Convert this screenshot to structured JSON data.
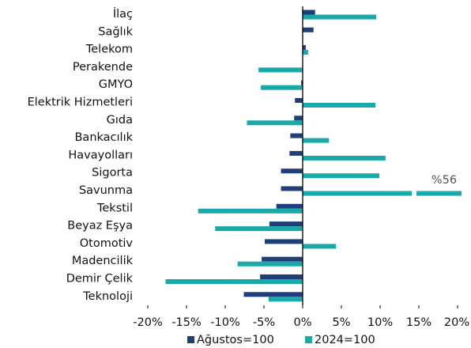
{
  "chart_data": {
    "type": "bar",
    "orientation": "horizontal",
    "categories": [
      "İlaç",
      "Sağlık",
      "Telekom",
      "Perakende",
      "GMYO",
      "Elektrik Hizmetleri",
      "Gıda",
      "Bankacılık",
      "Havayolları",
      "Sigorta",
      "Savunma",
      "Tekstil",
      "Beyaz Eşya",
      "Otomotiv",
      "Madencilik",
      "Demir Çelik",
      "Teknoloji"
    ],
    "series": [
      {
        "name": "Ağustos=100",
        "color": "#1f3f7a",
        "values": [
          1.6,
          1.4,
          0.4,
          0,
          -0.2,
          -1.0,
          -1.1,
          -1.6,
          -1.7,
          -2.8,
          -2.8,
          -3.4,
          -4.3,
          -4.9,
          -5.3,
          -5.5,
          -7.6
        ]
      },
      {
        "name": "2024=100",
        "color": "#1aa9a9",
        "values": [
          9.5,
          0,
          0.7,
          -5.7,
          -5.4,
          9.4,
          -7.2,
          3.4,
          10.7,
          9.9,
          56,
          -13.5,
          -11.3,
          4.3,
          -8.4,
          -17.7,
          -4.4
        ],
        "value_labels": [
          null,
          null,
          null,
          null,
          null,
          null,
          null,
          null,
          null,
          null,
          "%56",
          null,
          null,
          null,
          null,
          null,
          null
        ]
      }
    ],
    "xlim": [
      -20,
      20
    ],
    "xticks": [
      {
        "value": -20,
        "label": "-20%"
      },
      {
        "value": -15,
        "label": "-15%"
      },
      {
        "value": -10,
        "label": "-10%"
      },
      {
        "value": -5,
        "label": "-5%"
      },
      {
        "value": 0,
        "label": "0%"
      },
      {
        "value": 5,
        "label": "5%"
      },
      {
        "value": 10,
        "label": "10%"
      },
      {
        "value": 15,
        "label": "15%"
      },
      {
        "value": 20,
        "label": "20%"
      }
    ],
    "legend": "bottom"
  }
}
